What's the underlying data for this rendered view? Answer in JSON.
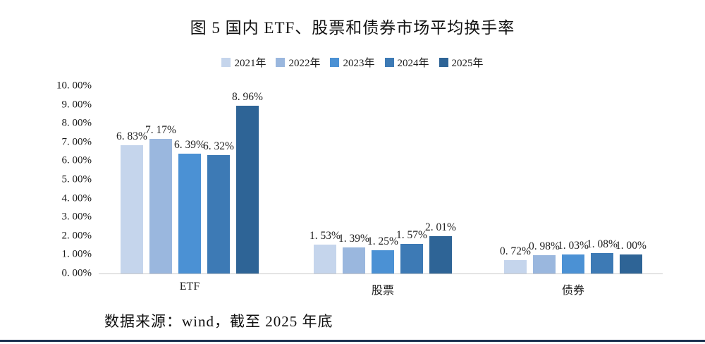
{
  "title": "图 5 国内 ETF、股票和债券市场平均换手率",
  "source_note": "数据来源：wind，截至 2025 年底",
  "colors": {
    "axis_line": "#c9c9c9",
    "bottom_rule": "#1d3251",
    "text": "#1a1a1a"
  },
  "legend": [
    {
      "label": "2021年",
      "color": "#c5d5ec"
    },
    {
      "label": "2022年",
      "color": "#9ab7de"
    },
    {
      "label": "2023年",
      "color": "#4b91d4"
    },
    {
      "label": "2024年",
      "color": "#3d7ab5"
    },
    {
      "label": "2025年",
      "color": "#2e6496"
    }
  ],
  "y_axis": {
    "ticks_top_to_bottom": [
      "10. 00%",
      "9. 00%",
      "8. 00%",
      "7. 00%",
      "6. 00%",
      "5. 00%",
      "4. 00%",
      "3. 00%",
      "2. 00%",
      "1. 00%",
      "0. 00%"
    ],
    "min": 0,
    "max": 10
  },
  "chart_data": {
    "type": "bar",
    "title": "图 5 国内 ETF、股票和债券市场平均换手率",
    "categories": [
      "ETF",
      "股票",
      "债券"
    ],
    "series": [
      {
        "name": "2021年",
        "color": "#c5d5ec",
        "values": [
          6.83,
          1.53,
          0.72
        ]
      },
      {
        "name": "2022年",
        "color": "#9ab7de",
        "values": [
          7.17,
          1.39,
          0.98
        ]
      },
      {
        "name": "2023年",
        "color": "#4b91d4",
        "values": [
          6.39,
          1.25,
          1.03
        ]
      },
      {
        "name": "2024年",
        "color": "#3d7ab5",
        "values": [
          6.32,
          1.57,
          1.08
        ]
      },
      {
        "name": "2025年",
        "color": "#2e6496",
        "values": [
          8.96,
          2.01,
          1.0
        ]
      }
    ],
    "data_labels": [
      [
        "6. 83%",
        "7. 17%",
        "6. 39%",
        "6. 32%",
        "8. 96%"
      ],
      [
        "1. 53%",
        "1. 39%",
        "1. 25%",
        "1. 57%",
        "2. 01%"
      ],
      [
        "0. 72%",
        "0. 98%",
        "1. 03%",
        "1. 08%",
        "1. 00%"
      ]
    ],
    "xlabel": "",
    "ylabel": "",
    "ylim": [
      0,
      10
    ],
    "grid": false,
    "legend_position": "top"
  }
}
